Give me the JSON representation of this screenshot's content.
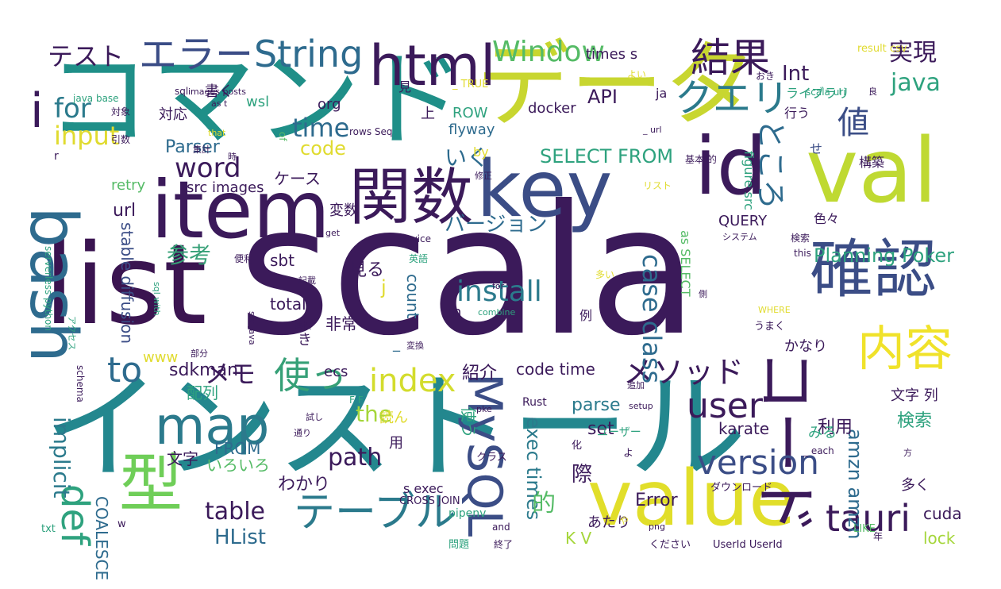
{
  "words": [
    {
      "text": "scala",
      "color": "#3b1a5a"
    },
    {
      "text": "インストール",
      "color": "#23878e"
    },
    {
      "text": "コマンド",
      "color": "#1f8f88"
    },
    {
      "text": "list",
      "color": "#3a1450"
    },
    {
      "text": "データ",
      "color": "#c8d630"
    },
    {
      "text": "val",
      "color": "#bfd932"
    },
    {
      "text": "value",
      "color": "#e1de2a"
    },
    {
      "text": "item",
      "color": "#3b1a5a"
    },
    {
      "text": "key",
      "color": "#3b4d86"
    },
    {
      "text": "id",
      "color": "#3b1a5a"
    },
    {
      "text": "コード",
      "color": "#3b1a5a"
    },
    {
      "text": "確認",
      "color": "#3b4d86"
    },
    {
      "text": "bash",
      "color": "#2e6b8e"
    },
    {
      "text": "関数",
      "color": "#3b1a5a"
    },
    {
      "text": "型",
      "color": "#6fce58"
    },
    {
      "text": "html",
      "color": "#3b1a5a"
    },
    {
      "text": "i",
      "color": "#3b1a5a"
    },
    {
      "text": "map",
      "color": "#2b7a8c"
    },
    {
      "text": "MySQL",
      "color": "#3b4d86"
    },
    {
      "text": "内容",
      "color": "#f0e22a"
    },
    {
      "text": "テーブル",
      "color": "#2b7a8c"
    },
    {
      "text": "結果",
      "color": "#3b1a5a"
    },
    {
      "text": "クエリ",
      "color": "#2b7a8c"
    },
    {
      "text": "エラー",
      "color": "#3b4d86"
    },
    {
      "text": "String",
      "color": "#2e6b8e"
    },
    {
      "text": "tauri",
      "color": "#3b1a5a"
    },
    {
      "text": "def",
      "color": "#2ea27e"
    },
    {
      "text": "使っ",
      "color": "#36a077"
    },
    {
      "text": "index",
      "color": "#d3dc2d"
    },
    {
      "text": "to",
      "color": "#2e6b8e"
    },
    {
      "text": "user",
      "color": "#3b1a5a"
    },
    {
      "text": "version",
      "color": "#3b4d86"
    },
    {
      "text": "メソッド",
      "color": "#3b1a5a"
    },
    {
      "text": "値",
      "color": "#3b4d86"
    },
    {
      "text": "ところ",
      "color": "#2e6b8e"
    },
    {
      "text": "Window",
      "color": "#55bb66"
    },
    {
      "text": "install",
      "color": "#2b7a8c"
    },
    {
      "text": "word",
      "color": "#3b1a5a"
    },
    {
      "text": "time",
      "color": "#2e6b8e"
    },
    {
      "text": "for",
      "color": "#2b7a8c"
    },
    {
      "text": "input",
      "color": "#e0db2f"
    },
    {
      "text": "テスト",
      "color": "#3b1a5a"
    },
    {
      "text": "java",
      "color": "#2ea27e"
    },
    {
      "text": "実現",
      "color": "#3b1a5a"
    },
    {
      "text": "case class",
      "color": "#2e6b8e"
    },
    {
      "text": "path",
      "color": "#3b1a5a"
    },
    {
      "text": "table",
      "color": "#3b1a5a"
    },
    {
      "text": "the",
      "color": "#a5d63b"
    },
    {
      "text": "implicit",
      "color": "#2b7a8c"
    },
    {
      "text": "メモ",
      "color": "#3b1a5a"
    },
    {
      "text": "Int",
      "color": "#3b1a5a"
    },
    {
      "text": "参考",
      "color": "#36a077"
    },
    {
      "text": "Planning Poker",
      "color": "#2ea27e"
    },
    {
      "text": "SELECT FROM",
      "color": "#2ea27e"
    },
    {
      "text": "バージョン",
      "color": "#2e6b8e"
    },
    {
      "text": "HList",
      "color": "#2e6b8e"
    },
    {
      "text": "code",
      "color": "#e0db2f"
    },
    {
      "text": "API",
      "color": "#3b1a5a"
    },
    {
      "text": "amzn amzn",
      "color": "#2e6b8e"
    },
    {
      "text": "exec times",
      "color": "#2b7a8c"
    },
    {
      "text": "いく",
      "color": "#2e6b8e"
    },
    {
      "text": "url",
      "color": "#3b1a5a"
    },
    {
      "text": "わかり",
      "color": "#3b1a5a"
    },
    {
      "text": "Parser",
      "color": "#2e6b8e"
    },
    {
      "text": "stable diffusion",
      "color": "#3b4d86"
    },
    {
      "text": "見る",
      "color": "#3b1a5a"
    },
    {
      "text": "際",
      "color": "#3b1a5a"
    },
    {
      "text": "Error",
      "color": "#3b1a5a"
    },
    {
      "text": "sdkman",
      "color": "#3b1a5a"
    },
    {
      "text": "code time",
      "color": "#3b1a5a"
    },
    {
      "text": "紹介",
      "color": "#3b1a5a"
    },
    {
      "text": "検索",
      "color": "#2ea27e"
    },
    {
      "text": "利用",
      "color": "#3b1a5a"
    },
    {
      "text": "karate",
      "color": "#3b1a5a"
    },
    {
      "text": "文字 列",
      "color": "#3b1a5a"
    },
    {
      "text": "cuda",
      "color": "#3b1a5a"
    },
    {
      "text": "COALESCE",
      "color": "#2e6b8e"
    },
    {
      "text": "FROM",
      "color": "#2e6b8e"
    },
    {
      "text": "K V",
      "color": "#a5d63b"
    },
    {
      "text": "lock",
      "color": "#a5d63b"
    },
    {
      "text": "parse",
      "color": "#2b7a8c"
    },
    {
      "text": "set",
      "color": "#3b1a5a"
    },
    {
      "text": "ケース",
      "color": "#3b1a5a"
    },
    {
      "text": "retry",
      "color": "#55bb66"
    },
    {
      "text": "src images",
      "color": "#3b1a5a"
    },
    {
      "text": "sbt",
      "color": "#3b1a5a"
    },
    {
      "text": "total",
      "color": "#3b1a5a"
    },
    {
      "text": "count",
      "color": "#2e6b8e"
    },
    {
      "text": "非常",
      "color": "#3b1a5a"
    },
    {
      "text": "ecs",
      "color": "#3b1a5a"
    },
    {
      "text": "www",
      "color": "#e0db2f"
    },
    {
      "text": "配列",
      "color": "#2ea27e"
    },
    {
      "text": "文字",
      "color": "#3b1a5a"
    },
    {
      "text": "いろいろ",
      "color": "#55bb66"
    },
    {
      "text": "使う",
      "color": "#2ea27e"
    },
    {
      "text": "読ん",
      "color": "#e0db2f"
    },
    {
      "text": "用",
      "color": "#3b1a5a"
    },
    {
      "text": "的",
      "color": "#55bb66"
    },
    {
      "text": "あたり",
      "color": "#3b1a5a"
    },
    {
      "text": "かなり",
      "color": "#3b1a5a"
    },
    {
      "text": "みる",
      "color": "#2ea27e"
    },
    {
      "text": "多く",
      "color": "#3b1a5a"
    },
    {
      "text": "docker",
      "color": "#3b1a5a"
    },
    {
      "text": "flyway",
      "color": "#2e6b8e"
    },
    {
      "text": "ROW",
      "color": "#2ea27e"
    },
    {
      "text": "org",
      "color": "#3b1a5a"
    },
    {
      "text": "wsl",
      "color": "#2ea27e"
    },
    {
      "text": "対応",
      "color": "#3b1a5a"
    },
    {
      "text": "書く",
      "color": "#3b1a5a"
    },
    {
      "text": "times s",
      "color": "#3b1a5a"
    },
    {
      "text": "見",
      "color": "#3b1a5a"
    },
    {
      "text": "ja",
      "color": "#3b1a5a"
    },
    {
      "text": "行う",
      "color": "#3b1a5a"
    },
    {
      "text": "ライブラリ",
      "color": "#2ea27e"
    },
    {
      "text": "構築",
      "color": "#3b1a5a"
    },
    {
      "text": "せ",
      "color": "#3b4d86"
    },
    {
      "text": "色々",
      "color": "#3b1a5a"
    },
    {
      "text": "QUERY",
      "color": "#3b1a5a"
    },
    {
      "text": "as SELECT",
      "color": "#55bb66"
    },
    {
      "text": "figure src",
      "color": "#2ea27e"
    },
    {
      "text": "変数",
      "color": "#3b1a5a"
    },
    {
      "text": "by",
      "color": "#e0db2f"
    },
    {
      "text": "in",
      "color": "#3b1a5a"
    },
    {
      "text": "例",
      "color": "#3b1a5a"
    },
    {
      "text": "ユーザー",
      "color": "#2ea27e"
    },
    {
      "text": "Rust",
      "color": "#3b1a5a"
    },
    {
      "text": "s exec",
      "color": "#3b1a5a"
    },
    {
      "text": "CROSS JOIN",
      "color": "#3b1a5a"
    },
    {
      "text": "pipenv",
      "color": "#2ea27e"
    },
    {
      "text": "UserId UserId",
      "color": "#3b1a5a"
    },
    {
      "text": "LIKE",
      "color": "#55bb66"
    },
    {
      "text": "ダウンロード",
      "color": "#3b1a5a"
    },
    {
      "text": "クラス",
      "color": "#3b1a5a"
    },
    {
      "text": "化",
      "color": "#3b1a5a"
    },
    {
      "text": "よ",
      "color": "#3b1a5a"
    },
    {
      "text": "txt",
      "color": "#2ea27e"
    },
    {
      "text": "w",
      "color": "#3b1a5a"
    },
    {
      "text": "and",
      "color": "#3b1a5a"
    },
    {
      "text": "終了",
      "color": "#3b1a5a"
    },
    {
      "text": "問題",
      "color": "#2ea27e"
    },
    {
      "text": "ください",
      "color": "#3b1a5a"
    },
    {
      "text": "年",
      "color": "#3b1a5a"
    },
    {
      "text": "java base",
      "color": "#2ea27e"
    },
    {
      "text": "sql",
      "color": "#3b1a5a"
    },
    {
      "text": "images posts",
      "color": "#3b1a5a"
    },
    {
      "text": "result csv",
      "color": "#e0db2f"
    },
    {
      "text": "_ TRUE",
      "color": "#e0db2f"
    },
    {
      "text": "rows Seq",
      "color": "#3b1a5a"
    },
    {
      "text": "scala uri",
      "color": "#2ea27e"
    },
    {
      "text": "基本 的",
      "color": "#3b1a5a"
    },
    {
      "text": "集計",
      "color": "#3b1a5a"
    },
    {
      "text": "引数",
      "color": "#3b1a5a"
    },
    {
      "text": "対象",
      "color": "#3b1a5a"
    },
    {
      "text": "as t",
      "color": "#3b1a5a"
    },
    {
      "text": "時",
      "color": "#3b1a5a"
    },
    {
      "text": "of",
      "color": "#55bb66"
    },
    {
      "text": "リスト",
      "color": "#e0db2f"
    },
    {
      "text": "get",
      "color": "#3b1a5a"
    },
    {
      "text": "service",
      "color": "#3b1a5a"
    },
    {
      "text": "英語",
      "color": "#2ea27e"
    },
    {
      "text": "serverless python",
      "color": "#2ea27e"
    },
    {
      "text": "便利",
      "color": "#3b1a5a"
    },
    {
      "text": "記載",
      "color": "#3b1a5a"
    },
    {
      "text": "sql with",
      "color": "#2ea27e"
    },
    {
      "text": "選択",
      "color": "#3b1a5a"
    },
    {
      "text": "src java",
      "color": "#3b1a5a"
    },
    {
      "text": "アクセス",
      "color": "#2ea27e"
    },
    {
      "text": "部分",
      "color": "#3b1a5a"
    },
    {
      "text": "変換",
      "color": "#3b1a5a"
    },
    {
      "text": "combine",
      "color": "#2ea27e"
    },
    {
      "text": "WHERE",
      "color": "#e0db2f"
    },
    {
      "text": "うまく",
      "color": "#3b1a5a"
    },
    {
      "text": "システム",
      "color": "#3b1a5a"
    },
    {
      "text": "検索",
      "color": "#3b1a5a"
    },
    {
      "text": "this",
      "color": "#3b1a5a"
    },
    {
      "text": "多い",
      "color": "#e0db2f"
    },
    {
      "text": "側",
      "color": "#3b1a5a"
    },
    {
      "text": "for _",
      "color": "#3b1a5a"
    },
    {
      "text": "setup",
      "color": "#3b1a5a"
    },
    {
      "text": "追加",
      "color": "#3b1a5a"
    },
    {
      "text": "F F",
      "color": "#2ea27e"
    },
    {
      "text": "pke",
      "color": "#3b1a5a"
    },
    {
      "text": "png",
      "color": "#3b1a5a"
    },
    {
      "text": "_ each",
      "color": "#3b1a5a"
    },
    {
      "text": "方",
      "color": "#3b1a5a"
    },
    {
      "text": "試し",
      "color": "#3b1a5a"
    },
    {
      "text": "通り",
      "color": "#3b1a5a"
    },
    {
      "text": "schema",
      "color": "#3b1a5a"
    },
    {
      "text": "よい",
      "color": "#e0db2f"
    },
    {
      "text": "おき",
      "color": "#3b1a5a"
    },
    {
      "text": "良",
      "color": "#3b1a5a"
    },
    {
      "text": "that",
      "color": "#e0db2f"
    },
    {
      "text": "_ url",
      "color": "#3b1a5a"
    },
    {
      "text": "修正",
      "color": "#3b1a5a"
    },
    {
      "text": "r",
      "color": "#3b1a5a"
    },
    {
      "text": "j",
      "color": "#e0db2f"
    },
    {
      "text": "き",
      "color": "#3b1a5a"
    },
    {
      "text": "上",
      "color": "#3b1a5a"
    },
    {
      "text": "_",
      "color": "#2e6b8e"
    },
    {
      "text": "や",
      "color": "#e0db2f"
    }
  ]
}
